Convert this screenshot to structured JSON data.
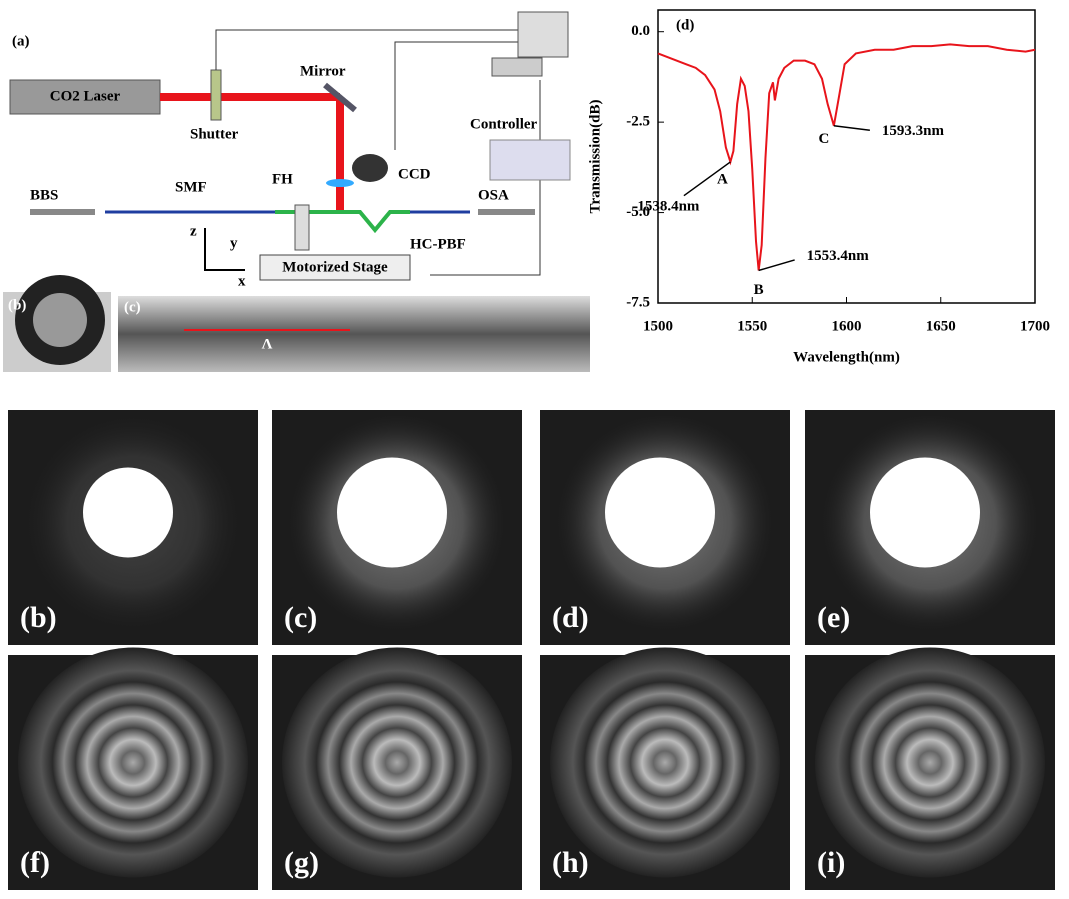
{
  "diagram": {
    "label": "(a)",
    "laser": "CO2 Laser",
    "mirror": "Mirror",
    "shutter": "Shutter",
    "controller": "Controller",
    "ccd": "CCD",
    "source": "BBS",
    "fiber": "SMF",
    "holder": "FH",
    "analyzer": "OSA",
    "pbf": "HC-PBF",
    "stage": "Motorized Stage",
    "axis_z": "z",
    "axis_y": "y",
    "axis_x": "x"
  },
  "inset_b": {
    "label": "(b)"
  },
  "inset_c": {
    "label": "(c)",
    "period": "Λ"
  },
  "chart_data": {
    "type": "line",
    "label": "(d)",
    "x_label": "Wavelength(nm)",
    "y_label": "Transmission(dB)",
    "color": "#e8141b",
    "x": [
      1500,
      1505,
      1510,
      1515,
      1520,
      1525,
      1530,
      1533,
      1536,
      1538.4,
      1540,
      1542,
      1544,
      1546,
      1548,
      1550,
      1552,
      1553.4,
      1555,
      1557,
      1559,
      1561,
      1562,
      1564,
      1567,
      1572,
      1578,
      1583,
      1587,
      1590,
      1593.3,
      1596,
      1599,
      1605,
      1615,
      1625,
      1635,
      1645,
      1655,
      1665,
      1675,
      1685,
      1695,
      1700
    ],
    "values": [
      -0.6,
      -0.7,
      -0.8,
      -0.9,
      -1.0,
      -1.2,
      -1.6,
      -2.2,
      -3.2,
      -3.6,
      -3.3,
      -2.0,
      -1.3,
      -1.5,
      -2.2,
      -3.8,
      -5.8,
      -6.6,
      -5.9,
      -3.5,
      -1.7,
      -1.4,
      -1.9,
      -1.3,
      -1.0,
      -0.8,
      -0.8,
      -0.9,
      -1.3,
      -2.0,
      -2.6,
      -1.8,
      -0.9,
      -0.6,
      -0.5,
      -0.5,
      -0.4,
      -0.4,
      -0.35,
      -0.4,
      -0.4,
      -0.5,
      -0.55,
      -0.5
    ],
    "xlim": [
      1500,
      1700
    ],
    "xticks": [
      1500,
      1550,
      1600,
      1650,
      1700
    ],
    "ylim": [
      -7.5,
      0.6
    ],
    "yticks": [
      {
        "value": 0,
        "label": "0.0"
      },
      {
        "value": -2.5,
        "label": "-2.5"
      },
      {
        "value": -5,
        "label": "-5.0"
      },
      {
        "value": -7.5,
        "label": "-7.5"
      }
    ],
    "annotations": [
      {
        "point": "A",
        "label": "1538.4nm",
        "x": 1538.4,
        "y": -3.6
      },
      {
        "point": "B",
        "label": "1553.4nm",
        "x": 1553.4,
        "y": -6.6
      },
      {
        "point": "C",
        "label": "1593.3nm",
        "x": 1593.3,
        "y": -2.6
      }
    ]
  },
  "panels": [
    "(b)",
    "(c)",
    "(d)",
    "(e)",
    "(f)",
    "(g)",
    "(h)",
    "(i)"
  ]
}
